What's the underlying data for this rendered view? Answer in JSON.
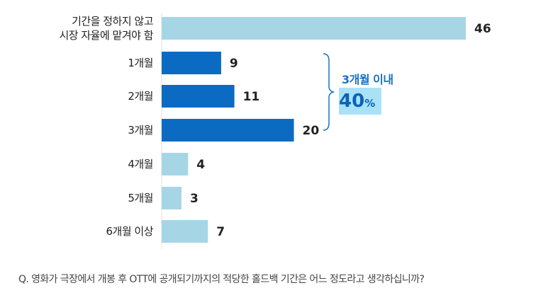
{
  "chart_data": {
    "type": "bar",
    "orientation": "horizontal",
    "categories": [
      [
        "기간을 정하지 않고",
        "시장 자율에 맡겨야 함"
      ],
      [
        "1개월"
      ],
      [
        "2개월"
      ],
      [
        "3개월"
      ],
      [
        "4개월"
      ],
      [
        "5개월"
      ],
      [
        "6개월 이상"
      ]
    ],
    "values": [
      46,
      9,
      11,
      20,
      4,
      3,
      7
    ],
    "highlighted": [
      false,
      true,
      true,
      true,
      false,
      false,
      false
    ],
    "xlim": [
      0,
      46
    ],
    "grid": false,
    "colors": {
      "normal": "#a6d6e5",
      "highlight": "#0b6bc3"
    },
    "annotation": {
      "label": "3개월 이내",
      "value": "40",
      "unit": "%"
    },
    "caption": "Q. 영화가 극장에서 개봉 후 OTT에 공개되기까지의 적당한 홀드백 기간은 어느 정도라고 생각하십니까?"
  }
}
